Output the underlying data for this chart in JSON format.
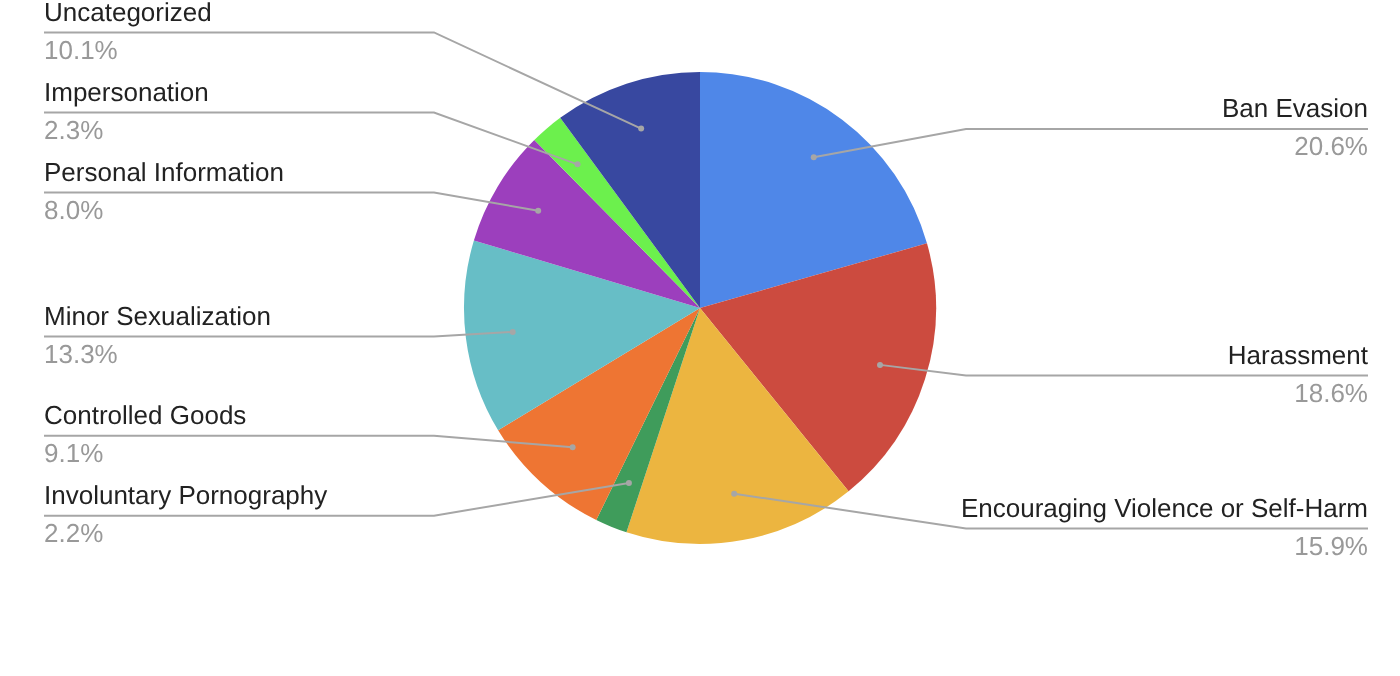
{
  "chart_data": {
    "type": "pie",
    "categories": [
      "Ban Evasion",
      "Harassment",
      "Encouraging Violence or Self-Harm",
      "Involuntary Pornography",
      "Controlled Goods",
      "Minor Sexualization",
      "Personal Information",
      "Impersonation",
      "Uncategorized"
    ],
    "values": [
      20.6,
      18.6,
      15.9,
      2.2,
      9.1,
      13.3,
      8.0,
      2.3,
      10.1
    ],
    "value_labels": [
      "20.6%",
      "18.6%",
      "15.9%",
      "2.2%",
      "9.1%",
      "13.3%",
      "8.0%",
      "2.3%",
      "10.1%"
    ],
    "colors": [
      "#4f87e8",
      "#cc4b3f",
      "#ecb540",
      "#3f9c5b",
      "#ee7533",
      "#67bec6",
      "#9c3fbd",
      "#6cf04d",
      "#3848a0"
    ],
    "legend": false
  }
}
